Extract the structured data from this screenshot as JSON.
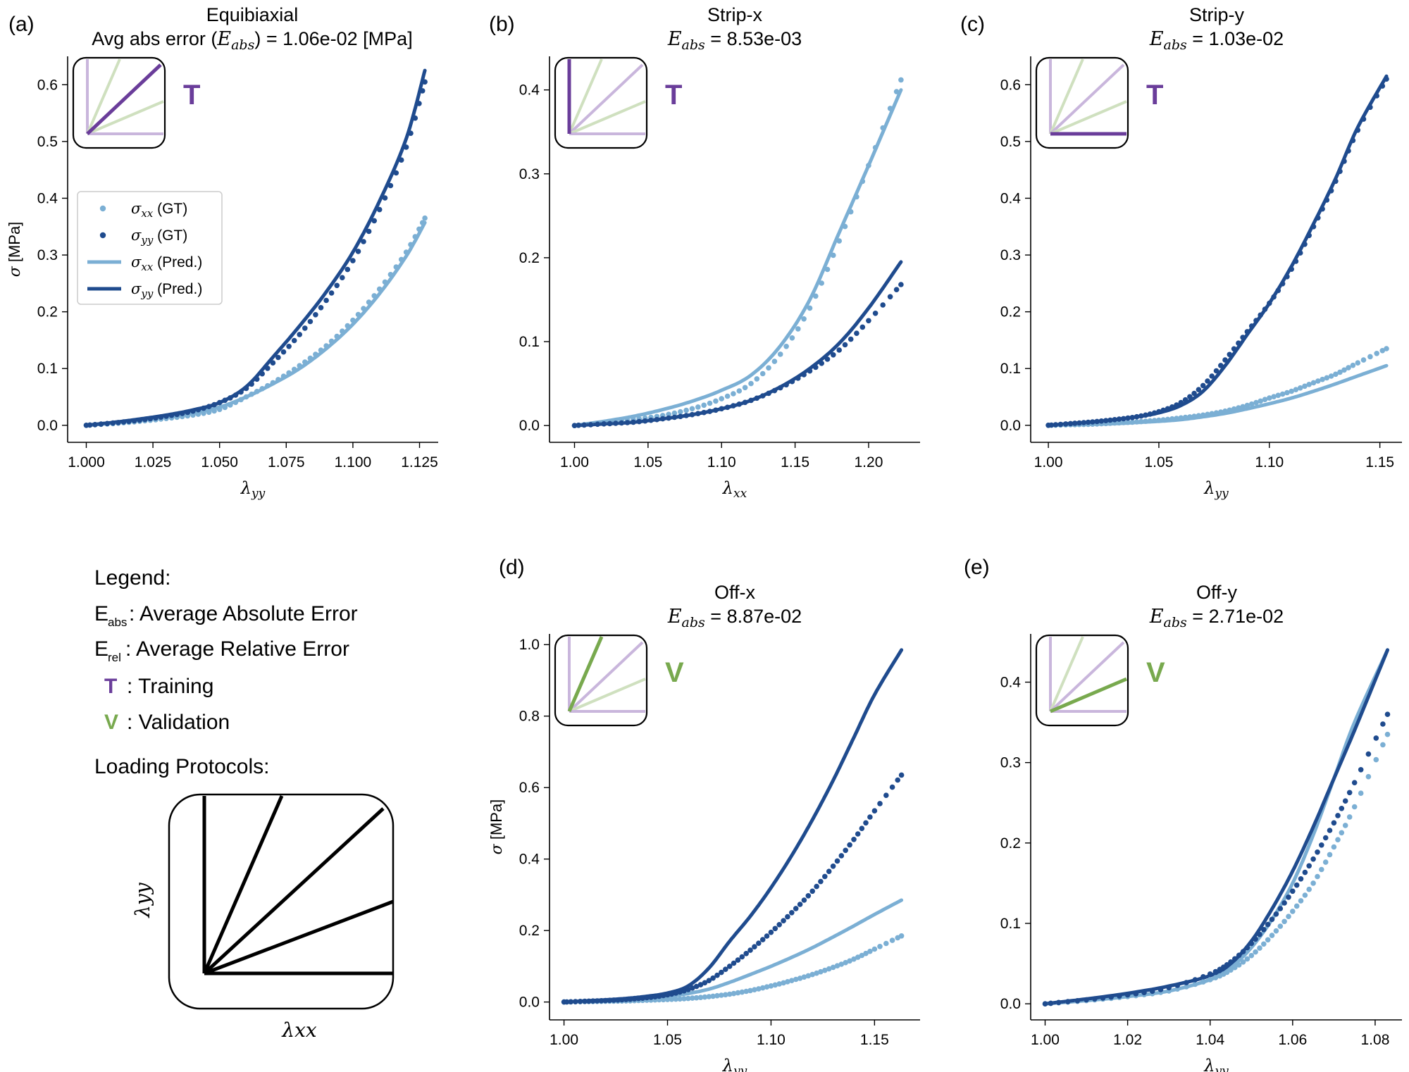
{
  "colors": {
    "light_blue": "#7bafd4",
    "dark_blue": "#1f4b8e",
    "purple": "#6a3d9a",
    "green": "#78a94e",
    "inset_purple_faint": "#c9b6dc",
    "inset_green_faint": "#cfe0bf"
  },
  "training_letter": "T",
  "validation_letter": "V",
  "figure_legend": {
    "title": "Legend:",
    "eabs_prefix": "E",
    "eabs_sub": "abs",
    "eabs_text": ": Average Absolute Error",
    "erel_prefix": "E",
    "erel_sub": "rel",
    "erel_text": ": Average Relative Error",
    "t_text": ": Training",
    "v_text": ": Validation",
    "protocols_title": "Loading Protocols:",
    "diagram_xlabel": "λxx",
    "diagram_ylabel": "λyy"
  },
  "series_legend": {
    "gt_xx": "σxx (GT)",
    "gt_yy": "σyy (GT)",
    "pred_xx": "σxx (Pred.)",
    "pred_yy": "σyy (Pred.)"
  },
  "chart_data": [
    {
      "id": "a",
      "panel_label": "(a)",
      "type": "line",
      "title_line1": "Equibiaxial",
      "title_line2": "Avg abs error (E_abs) = 1.06e-02 [MPa]",
      "title_pre": "Avg abs error (",
      "title_sym": "E",
      "title_sub": "abs",
      "title_post": ") = 1.06e-02 [MPa]",
      "xlabel": "λyy",
      "ylabel": "σ [MPa]",
      "xlim": [
        0.993,
        1.132
      ],
      "ylim": [
        -0.03,
        0.65
      ],
      "xticks": [
        1.0,
        1.025,
        1.05,
        1.075,
        1.1,
        1.125
      ],
      "xtick_labels": [
        "1.000",
        "1.025",
        "1.050",
        "1.075",
        "1.100",
        "1.125"
      ],
      "yticks": [
        0.0,
        0.1,
        0.2,
        0.3,
        0.4,
        0.5,
        0.6
      ],
      "ytick_labels": [
        "0.0",
        "0.1",
        "0.2",
        "0.3",
        "0.4",
        "0.5",
        "0.6"
      ],
      "protocol_index": 2,
      "role": "T",
      "show_series_legend": true,
      "x_end": 1.127,
      "series": [
        {
          "name": "σxx (GT)",
          "kind": "points",
          "color_key": "light_blue",
          "x": [
            1.0,
            1.01,
            1.02,
            1.03,
            1.04,
            1.05,
            1.06,
            1.07,
            1.08,
            1.09,
            1.1,
            1.11,
            1.12,
            1.127
          ],
          "y": [
            0.0,
            0.003,
            0.007,
            0.012,
            0.018,
            0.028,
            0.05,
            0.075,
            0.105,
            0.14,
            0.185,
            0.24,
            0.305,
            0.365
          ]
        },
        {
          "name": "σyy (GT)",
          "kind": "points",
          "color_key": "dark_blue",
          "x": [
            1.0,
            1.01,
            1.02,
            1.03,
            1.04,
            1.05,
            1.06,
            1.07,
            1.08,
            1.09,
            1.1,
            1.11,
            1.12,
            1.127
          ],
          "y": [
            0.0,
            0.004,
            0.009,
            0.016,
            0.025,
            0.04,
            0.065,
            0.11,
            0.16,
            0.22,
            0.29,
            0.38,
            0.49,
            0.605
          ]
        },
        {
          "name": "σxx (Pred.)",
          "kind": "line",
          "color_key": "light_blue",
          "x": [
            1.0,
            1.01,
            1.02,
            1.03,
            1.04,
            1.05,
            1.06,
            1.07,
            1.08,
            1.09,
            1.1,
            1.11,
            1.12,
            1.127
          ],
          "y": [
            0.0,
            0.004,
            0.009,
            0.015,
            0.022,
            0.032,
            0.05,
            0.073,
            0.1,
            0.135,
            0.178,
            0.232,
            0.298,
            0.357
          ]
        },
        {
          "name": "σyy (Pred.)",
          "kind": "line",
          "color_key": "dark_blue",
          "x": [
            1.0,
            1.01,
            1.02,
            1.03,
            1.04,
            1.05,
            1.06,
            1.07,
            1.08,
            1.09,
            1.1,
            1.11,
            1.12,
            1.127
          ],
          "y": [
            0.0,
            0.005,
            0.011,
            0.018,
            0.027,
            0.04,
            0.068,
            0.12,
            0.175,
            0.235,
            0.305,
            0.395,
            0.505,
            0.625
          ]
        }
      ]
    },
    {
      "id": "b",
      "panel_label": "(b)",
      "type": "line",
      "title_line1": "Strip-x",
      "title_line2": "E_abs = 8.53e-03",
      "title_pre": "",
      "title_sym": "E",
      "title_sub": "abs",
      "title_post": " = 8.53e-03",
      "xlabel": "λxx",
      "ylabel": "",
      "xlim": [
        0.983,
        1.235
      ],
      "ylim": [
        -0.02,
        0.44
      ],
      "xticks": [
        1.0,
        1.05,
        1.1,
        1.15,
        1.2
      ],
      "xtick_labels": [
        "1.00",
        "1.05",
        "1.10",
        "1.15",
        "1.20"
      ],
      "yticks": [
        0.0,
        0.1,
        0.2,
        0.3,
        0.4
      ],
      "ytick_labels": [
        "0.0",
        "0.1",
        "0.2",
        "0.3",
        "0.4"
      ],
      "protocol_index": 0,
      "role": "T",
      "show_series_legend": false,
      "series": [
        {
          "name": "σxx (GT)",
          "kind": "points",
          "color_key": "light_blue",
          "x": [
            1.0,
            1.02,
            1.04,
            1.06,
            1.08,
            1.1,
            1.12,
            1.14,
            1.16,
            1.18,
            1.2,
            1.222
          ],
          "y": [
            0.0,
            0.003,
            0.007,
            0.012,
            0.02,
            0.032,
            0.05,
            0.085,
            0.14,
            0.22,
            0.31,
            0.412
          ]
        },
        {
          "name": "σyy (GT)",
          "kind": "points",
          "color_key": "dark_blue",
          "x": [
            1.0,
            1.02,
            1.04,
            1.06,
            1.08,
            1.1,
            1.12,
            1.14,
            1.16,
            1.18,
            1.2,
            1.222
          ],
          "y": [
            0.0,
            0.002,
            0.004,
            0.008,
            0.013,
            0.02,
            0.03,
            0.045,
            0.065,
            0.09,
            0.125,
            0.168
          ]
        },
        {
          "name": "σxx (Pred.)",
          "kind": "line",
          "color_key": "light_blue",
          "x": [
            1.0,
            1.02,
            1.04,
            1.06,
            1.08,
            1.1,
            1.12,
            1.14,
            1.16,
            1.18,
            1.2,
            1.222
          ],
          "y": [
            0.0,
            0.005,
            0.011,
            0.019,
            0.029,
            0.042,
            0.06,
            0.095,
            0.15,
            0.23,
            0.31,
            0.4
          ]
        },
        {
          "name": "σyy (Pred.)",
          "kind": "line",
          "color_key": "dark_blue",
          "x": [
            1.0,
            1.02,
            1.04,
            1.06,
            1.08,
            1.1,
            1.12,
            1.14,
            1.16,
            1.18,
            1.2,
            1.222
          ],
          "y": [
            0.0,
            0.002,
            0.004,
            0.008,
            0.013,
            0.02,
            0.03,
            0.046,
            0.068,
            0.098,
            0.14,
            0.195
          ]
        }
      ]
    },
    {
      "id": "c",
      "panel_label": "(c)",
      "type": "line",
      "title_line1": "Strip-y",
      "title_line2": "E_abs = 1.03e-02",
      "title_pre": "",
      "title_sym": "E",
      "title_sub": "abs",
      "title_post": " = 1.03e-02",
      "xlabel": "λyy",
      "ylabel": "",
      "xlim": [
        0.992,
        1.16
      ],
      "ylim": [
        -0.03,
        0.65
      ],
      "xticks": [
        1.0,
        1.05,
        1.1,
        1.15
      ],
      "xtick_labels": [
        "1.00",
        "1.05",
        "1.10",
        "1.15"
      ],
      "yticks": [
        0.0,
        0.1,
        0.2,
        0.3,
        0.4,
        0.5,
        0.6
      ],
      "ytick_labels": [
        "0.0",
        "0.1",
        "0.2",
        "0.3",
        "0.4",
        "0.5",
        "0.6"
      ],
      "protocol_index": 4,
      "role": "T",
      "show_series_legend": false,
      "series": [
        {
          "name": "σxx (GT)",
          "kind": "points",
          "color_key": "light_blue",
          "x": [
            1.0,
            1.01,
            1.02,
            1.03,
            1.04,
            1.05,
            1.06,
            1.07,
            1.08,
            1.09,
            1.1,
            1.11,
            1.12,
            1.13,
            1.14,
            1.153
          ],
          "y": [
            0.0,
            0.001,
            0.002,
            0.004,
            0.006,
            0.009,
            0.013,
            0.018,
            0.025,
            0.035,
            0.048,
            0.06,
            0.075,
            0.09,
            0.11,
            0.135
          ]
        },
        {
          "name": "σyy (GT)",
          "kind": "points",
          "color_key": "dark_blue",
          "x": [
            1.0,
            1.01,
            1.02,
            1.03,
            1.04,
            1.05,
            1.06,
            1.07,
            1.08,
            1.09,
            1.1,
            1.11,
            1.12,
            1.13,
            1.14,
            1.153
          ],
          "y": [
            0.0,
            0.003,
            0.006,
            0.01,
            0.015,
            0.024,
            0.04,
            0.07,
            0.115,
            0.165,
            0.215,
            0.275,
            0.35,
            0.43,
            0.52,
            0.61
          ]
        },
        {
          "name": "σxx (Pred.)",
          "kind": "line",
          "color_key": "light_blue",
          "x": [
            1.0,
            1.01,
            1.02,
            1.03,
            1.04,
            1.05,
            1.06,
            1.07,
            1.08,
            1.09,
            1.1,
            1.11,
            1.12,
            1.13,
            1.14,
            1.153
          ],
          "y": [
            0.0,
            0.001,
            0.002,
            0.003,
            0.005,
            0.007,
            0.01,
            0.015,
            0.021,
            0.029,
            0.038,
            0.048,
            0.06,
            0.073,
            0.087,
            0.105
          ]
        },
        {
          "name": "σyy (Pred.)",
          "kind": "line",
          "color_key": "dark_blue",
          "x": [
            1.0,
            1.01,
            1.02,
            1.03,
            1.04,
            1.05,
            1.06,
            1.07,
            1.08,
            1.09,
            1.1,
            1.11,
            1.12,
            1.13,
            1.14,
            1.153
          ],
          "y": [
            0.0,
            0.003,
            0.006,
            0.01,
            0.015,
            0.022,
            0.035,
            0.06,
            0.105,
            0.16,
            0.215,
            0.28,
            0.355,
            0.435,
            0.525,
            0.615
          ]
        }
      ]
    },
    {
      "id": "d",
      "panel_label": "(d)",
      "type": "line",
      "title_line1": "Off-x",
      "title_line2": "E_abs = 8.87e-02",
      "title_pre": "",
      "title_sym": "E",
      "title_sub": "abs",
      "title_post": " = 8.87e-02",
      "xlabel": "λyy",
      "ylabel": "σ [MPa]",
      "xlim": [
        0.993,
        1.172
      ],
      "ylim": [
        -0.05,
        1.03
      ],
      "xticks": [
        1.0,
        1.05,
        1.1,
        1.15
      ],
      "xtick_labels": [
        "1.00",
        "1.05",
        "1.10",
        "1.15"
      ],
      "yticks": [
        0.0,
        0.2,
        0.4,
        0.6,
        0.8,
        1.0
      ],
      "ytick_labels": [
        "0.0",
        "0.2",
        "0.4",
        "0.6",
        "0.8",
        "1.0"
      ],
      "protocol_index": 1,
      "role": "V",
      "show_series_legend": false,
      "series": [
        {
          "name": "σxx (GT)",
          "kind": "points",
          "color_key": "light_blue",
          "x": [
            1.0,
            1.01,
            1.02,
            1.03,
            1.04,
            1.05,
            1.06,
            1.07,
            1.08,
            1.09,
            1.1,
            1.11,
            1.12,
            1.13,
            1.14,
            1.15,
            1.163
          ],
          "y": [
            0.0,
            0.001,
            0.002,
            0.003,
            0.005,
            0.007,
            0.01,
            0.015,
            0.022,
            0.032,
            0.045,
            0.06,
            0.077,
            0.097,
            0.12,
            0.148,
            0.185
          ]
        },
        {
          "name": "σyy (GT)",
          "kind": "points",
          "color_key": "dark_blue",
          "x": [
            1.0,
            1.01,
            1.02,
            1.03,
            1.04,
            1.05,
            1.06,
            1.07,
            1.08,
            1.09,
            1.1,
            1.11,
            1.12,
            1.13,
            1.14,
            1.15,
            1.163
          ],
          "y": [
            0.0,
            0.002,
            0.004,
            0.007,
            0.012,
            0.02,
            0.035,
            0.06,
            0.1,
            0.145,
            0.195,
            0.25,
            0.31,
            0.38,
            0.455,
            0.535,
            0.635
          ]
        },
        {
          "name": "σxx (Pred.)",
          "kind": "line",
          "color_key": "light_blue",
          "x": [
            1.0,
            1.01,
            1.02,
            1.03,
            1.04,
            1.05,
            1.06,
            1.07,
            1.08,
            1.09,
            1.1,
            1.11,
            1.12,
            1.13,
            1.14,
            1.15,
            1.163
          ],
          "y": [
            0.0,
            0.002,
            0.004,
            0.007,
            0.011,
            0.016,
            0.024,
            0.036,
            0.055,
            0.077,
            0.1,
            0.125,
            0.152,
            0.182,
            0.213,
            0.245,
            0.285
          ]
        },
        {
          "name": "σyy (Pred.)",
          "kind": "line",
          "color_key": "dark_blue",
          "x": [
            1.0,
            1.01,
            1.02,
            1.03,
            1.04,
            1.05,
            1.06,
            1.07,
            1.08,
            1.09,
            1.1,
            1.11,
            1.12,
            1.13,
            1.14,
            1.15,
            1.163
          ],
          "y": [
            0.0,
            0.003,
            0.006,
            0.01,
            0.016,
            0.025,
            0.045,
            0.095,
            0.17,
            0.24,
            0.32,
            0.41,
            0.51,
            0.62,
            0.74,
            0.86,
            0.985
          ]
        }
      ]
    },
    {
      "id": "e",
      "panel_label": "(e)",
      "type": "line",
      "title_line1": "Off-y",
      "title_line2": "E_abs = 2.71e-02",
      "title_pre": "",
      "title_sym": "E",
      "title_sub": "abs",
      "title_post": " = 2.71e-02",
      "xlabel": "λyy",
      "ylabel": "",
      "xlim": [
        0.9965,
        1.0865
      ],
      "ylim": [
        -0.02,
        0.46
      ],
      "xticks": [
        1.0,
        1.02,
        1.04,
        1.06,
        1.08
      ],
      "xtick_labels": [
        "1.00",
        "1.02",
        "1.04",
        "1.06",
        "1.08"
      ],
      "yticks": [
        0.0,
        0.1,
        0.2,
        0.3,
        0.4
      ],
      "ytick_labels": [
        "0.0",
        "0.1",
        "0.2",
        "0.3",
        "0.4"
      ],
      "protocol_index": 3,
      "role": "V",
      "show_series_legend": false,
      "series": [
        {
          "name": "σxx (GT)",
          "kind": "points",
          "color_key": "light_blue",
          "x": [
            1.0,
            1.01,
            1.02,
            1.03,
            1.04,
            1.045,
            1.05,
            1.055,
            1.06,
            1.065,
            1.07,
            1.075,
            1.083
          ],
          "y": [
            0.0,
            0.004,
            0.009,
            0.016,
            0.03,
            0.042,
            0.06,
            0.085,
            0.115,
            0.15,
            0.195,
            0.245,
            0.335
          ]
        },
        {
          "name": "σyy (GT)",
          "kind": "points",
          "color_key": "dark_blue",
          "x": [
            1.0,
            1.01,
            1.02,
            1.03,
            1.04,
            1.045,
            1.05,
            1.055,
            1.06,
            1.065,
            1.07,
            1.075,
            1.083
          ],
          "y": [
            0.0,
            0.005,
            0.011,
            0.02,
            0.037,
            0.052,
            0.075,
            0.105,
            0.14,
            0.18,
            0.225,
            0.275,
            0.36
          ]
        },
        {
          "name": "σxx (Pred.)",
          "kind": "line",
          "color_key": "light_blue",
          "x": [
            1.0,
            1.01,
            1.02,
            1.03,
            1.04,
            1.045,
            1.05,
            1.055,
            1.06,
            1.065,
            1.07,
            1.075,
            1.083
          ],
          "y": [
            0.0,
            0.004,
            0.009,
            0.016,
            0.03,
            0.045,
            0.07,
            0.105,
            0.15,
            0.21,
            0.28,
            0.35,
            0.44
          ]
        },
        {
          "name": "σyy (Pred.)",
          "kind": "line",
          "color_key": "dark_blue",
          "x": [
            1.0,
            1.01,
            1.02,
            1.03,
            1.04,
            1.045,
            1.05,
            1.055,
            1.06,
            1.065,
            1.07,
            1.075,
            1.083
          ],
          "y": [
            0.0,
            0.006,
            0.013,
            0.022,
            0.035,
            0.05,
            0.078,
            0.118,
            0.165,
            0.22,
            0.28,
            0.34,
            0.44
          ]
        }
      ]
    }
  ]
}
